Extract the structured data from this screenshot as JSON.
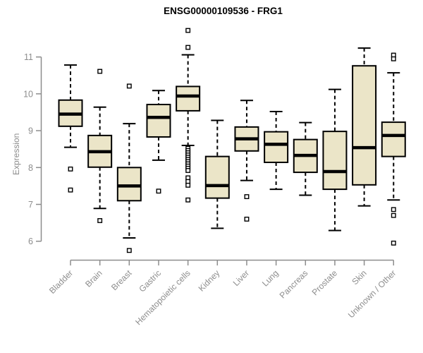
{
  "colors": {
    "box_fill": "#EBE5C8",
    "box_stroke": "#000000",
    "median": "#000000",
    "whisker": "#000000",
    "axis": "#8d8d8d",
    "tick_label": "#8d8d8d",
    "title": "#000000",
    "background": "#ffffff"
  },
  "chart_data": {
    "type": "boxplot",
    "title": "ENSG00000109536 - FRG1",
    "xlabel": "",
    "ylabel": "Expression",
    "ylim": [
      6,
      11
    ],
    "yticks": [
      6,
      7,
      8,
      9,
      10,
      11
    ],
    "grid": false,
    "legend": "none",
    "categories": [
      "Bladder",
      "Brain",
      "Breast",
      "Gastric",
      "Hematopoietic cells",
      "Kidney",
      "Liver",
      "Lung",
      "Pancreas",
      "Prostate",
      "Skin",
      "Unknown / Other"
    ],
    "boxes": [
      {
        "label": "Bladder",
        "whisker_low": 8.55,
        "q1": 9.12,
        "median": 9.45,
        "q3": 9.83,
        "whisker_high": 10.78,
        "outliers": [
          7.96,
          7.39
        ]
      },
      {
        "label": "Brain",
        "whisker_low": 6.89,
        "q1": 8.01,
        "median": 8.43,
        "q3": 8.87,
        "whisker_high": 9.64,
        "outliers": [
          10.61,
          6.56
        ]
      },
      {
        "label": "Breast",
        "whisker_low": 6.09,
        "q1": 7.1,
        "median": 7.5,
        "q3": 8.0,
        "whisker_high": 9.19,
        "outliers": [
          10.21,
          5.75
        ]
      },
      {
        "label": "Gastric",
        "whisker_low": 8.2,
        "q1": 8.83,
        "median": 9.36,
        "q3": 9.71,
        "whisker_high": 10.09,
        "outliers": [
          7.36
        ]
      },
      {
        "label": "Hematopoietic cells",
        "whisker_low": 8.6,
        "q1": 9.54,
        "median": 9.94,
        "q3": 10.2,
        "whisker_high": 11.06,
        "outliers": [
          11.72,
          11.26,
          8.52,
          8.46,
          8.4,
          8.34,
          8.28,
          8.22,
          8.16,
          8.1,
          8.04,
          7.98,
          7.92,
          7.72,
          7.62,
          7.52,
          7.12
        ]
      },
      {
        "label": "Kidney",
        "whisker_low": 6.35,
        "q1": 7.17,
        "median": 7.51,
        "q3": 8.3,
        "whisker_high": 9.28,
        "outliers": []
      },
      {
        "label": "Liver",
        "whisker_low": 7.65,
        "q1": 8.45,
        "median": 8.78,
        "q3": 9.1,
        "whisker_high": 9.82,
        "outliers": [
          7.21,
          6.6
        ]
      },
      {
        "label": "Lung",
        "whisker_low": 7.41,
        "q1": 8.14,
        "median": 8.63,
        "q3": 8.97,
        "whisker_high": 9.52,
        "outliers": []
      },
      {
        "label": "Pancreas",
        "whisker_low": 7.25,
        "q1": 7.87,
        "median": 8.33,
        "q3": 8.76,
        "whisker_high": 9.22,
        "outliers": []
      },
      {
        "label": "Prostate",
        "whisker_low": 6.29,
        "q1": 7.41,
        "median": 7.89,
        "q3": 8.98,
        "whisker_high": 10.12,
        "outliers": []
      },
      {
        "label": "Skin",
        "whisker_low": 6.96,
        "q1": 7.53,
        "median": 8.54,
        "q3": 10.76,
        "whisker_high": 11.24,
        "outliers": []
      },
      {
        "label": "Unknown / Other",
        "whisker_low": 7.12,
        "q1": 8.3,
        "median": 8.87,
        "q3": 9.23,
        "whisker_high": 10.57,
        "outliers": [
          11.05,
          10.95,
          6.86,
          6.7,
          5.95
        ]
      }
    ]
  }
}
